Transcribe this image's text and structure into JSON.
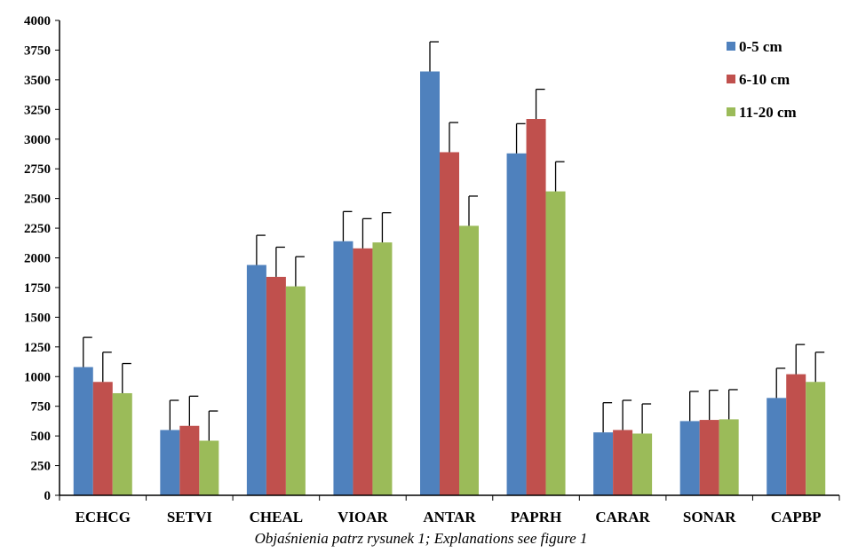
{
  "caption": "Objaśnienia patrz rysunek 1; Explanations see figure 1",
  "chart_data": {
    "type": "bar",
    "categories": [
      "ECHCG",
      "SETVI",
      "CHEAL",
      "VIOAR",
      "ANTAR",
      "PAPRH",
      "CARAR",
      "SONAR",
      "CAPBP"
    ],
    "series": [
      {
        "name": "0-5 cm",
        "color": "#4F81BD",
        "values": [
          1080,
          550,
          1940,
          2140,
          3570,
          2880,
          530,
          625,
          820
        ],
        "errors": [
          250,
          250,
          250,
          250,
          250,
          250,
          250,
          250,
          250
        ]
      },
      {
        "name": "6-10 cm",
        "color": "#C0504D",
        "values": [
          955,
          585,
          1840,
          2080,
          2890,
          3170,
          550,
          635,
          1020
        ],
        "errors": [
          250,
          250,
          250,
          250,
          250,
          250,
          250,
          250,
          250
        ]
      },
      {
        "name": "11-20 cm",
        "color": "#9BBB59",
        "values": [
          860,
          460,
          1760,
          2130,
          2270,
          2560,
          520,
          640,
          955
        ],
        "errors": [
          250,
          250,
          250,
          250,
          250,
          250,
          250,
          250,
          250
        ]
      }
    ],
    "ylim": [
      0,
      4000
    ],
    "yticks": [
      0,
      250,
      500,
      750,
      1000,
      1250,
      1500,
      1750,
      2000,
      2250,
      2500,
      2750,
      3000,
      3250,
      3500,
      3750,
      4000
    ],
    "legend_position": "top-right",
    "grid": false
  }
}
